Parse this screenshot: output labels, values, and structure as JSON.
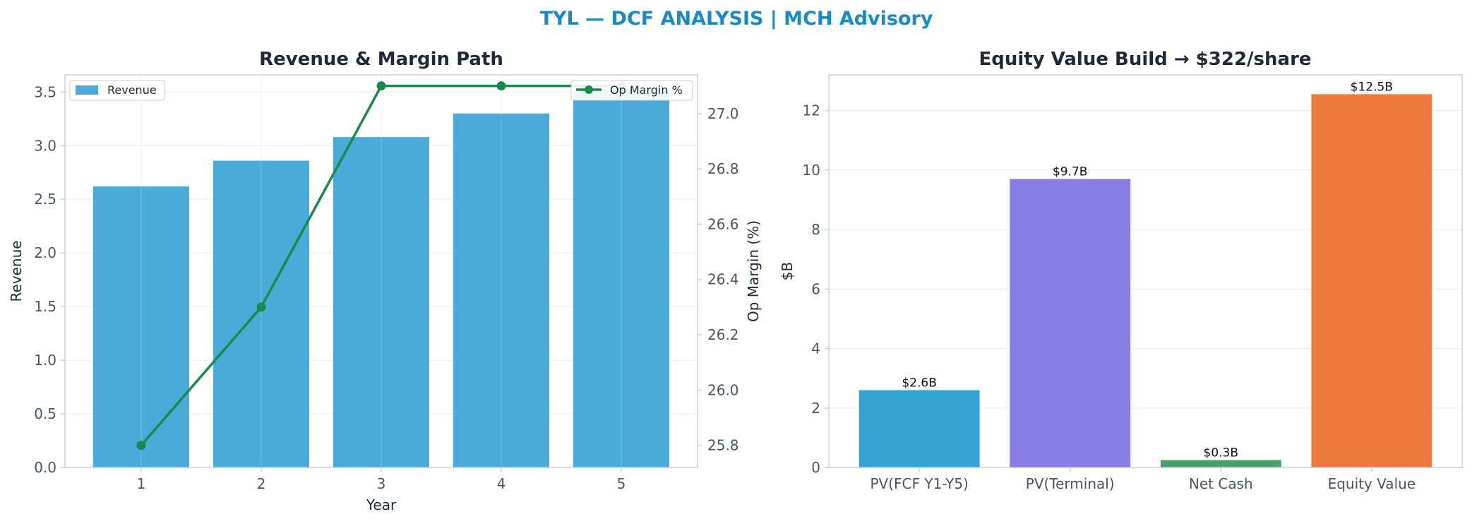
{
  "suptitle": "TYL — DCF ANALYSIS | MCH Advisory",
  "colors": {
    "title": "#1a8ac7",
    "revenue_bar": "#4aabd8",
    "margin_line": "#1a8a4a",
    "equity_bars": [
      "#34a3d4",
      "#8a7de8",
      "#4a9e68",
      "#ec7a3e"
    ],
    "grid": "#e6ebf2",
    "spine": "#c8d0dc"
  },
  "chart_data": [
    {
      "type": "bar",
      "title": "Revenue & Margin Path",
      "xlabel": "Year",
      "ylabel": "Revenue",
      "y2label": "Op Margin (%)",
      "categories": [
        "1",
        "2",
        "3",
        "4",
        "5"
      ],
      "series": [
        {
          "name": "Revenue",
          "type": "bar",
          "axis": "left",
          "values": [
            2.62,
            2.86,
            3.08,
            3.3,
            3.52
          ]
        },
        {
          "name": "Op Margin %",
          "type": "line",
          "axis": "right",
          "values": [
            25.8,
            26.3,
            27.1,
            27.1,
            27.1
          ]
        }
      ],
      "ylim": [
        0,
        3.66
      ],
      "y2lim": [
        25.72,
        27.14
      ],
      "yticks": [
        "0.0",
        "0.5",
        "1.0",
        "1.5",
        "2.0",
        "2.5",
        "3.0",
        "3.5"
      ],
      "y2ticks": [
        "25.8",
        "26.0",
        "26.2",
        "26.4",
        "26.6",
        "26.8",
        "27.0"
      ],
      "grid": true,
      "legend_placement": [
        "upper-left",
        "upper-right"
      ]
    },
    {
      "type": "bar",
      "title": "Equity Value Build → $322/share",
      "xlabel": "",
      "ylabel": "$B",
      "categories": [
        "PV(FCF Y1-Y5)",
        "PV(Terminal)",
        "Net Cash",
        "Equity Value"
      ],
      "values": [
        2.6,
        9.7,
        0.25,
        12.55
      ],
      "data_labels": [
        "$2.6B",
        "$9.7B",
        "$0.3B",
        "$12.5B"
      ],
      "ylim": [
        0,
        13.2
      ],
      "yticks": [
        "0",
        "2",
        "4",
        "6",
        "8",
        "10",
        "12"
      ],
      "grid": true
    }
  ]
}
